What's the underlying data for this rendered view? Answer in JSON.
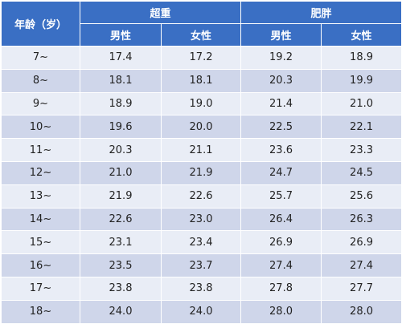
{
  "table": {
    "age_header": "年龄（岁）",
    "groups": [
      "超重",
      "肥胖"
    ],
    "sub_headers": [
      "男性",
      "女性",
      "男性",
      "女性"
    ],
    "rows": [
      {
        "age": "7~",
        "values": [
          "17.4",
          "17.2",
          "19.2",
          "18.9"
        ]
      },
      {
        "age": "8~",
        "values": [
          "18.1",
          "18.1",
          "20.3",
          "19.9"
        ]
      },
      {
        "age": "9~",
        "values": [
          "18.9",
          "19.0",
          "21.4",
          "21.0"
        ]
      },
      {
        "age": "10~",
        "values": [
          "19.6",
          "20.0",
          "22.5",
          "22.1"
        ]
      },
      {
        "age": "11~",
        "values": [
          "20.3",
          "21.1",
          "23.6",
          "23.3"
        ]
      },
      {
        "age": "12~",
        "values": [
          "21.0",
          "21.9",
          "24.7",
          "24.5"
        ]
      },
      {
        "age": "13~",
        "values": [
          "21.9",
          "22.6",
          "25.7",
          "25.6"
        ]
      },
      {
        "age": "14~",
        "values": [
          "22.6",
          "23.0",
          "26.4",
          "26.3"
        ]
      },
      {
        "age": "15~",
        "values": [
          "23.1",
          "23.4",
          "26.9",
          "26.9"
        ]
      },
      {
        "age": "16~",
        "values": [
          "23.5",
          "23.7",
          "27.4",
          "27.4"
        ]
      },
      {
        "age": "17~",
        "values": [
          "23.8",
          "23.8",
          "27.8",
          "27.7"
        ]
      },
      {
        "age": "18~",
        "values": [
          "24.0",
          "24.0",
          "28.0",
          "28.0"
        ]
      }
    ]
  },
  "colors": {
    "header": "#3a6fc4",
    "row_light": "#e9edf6",
    "row_dark": "#cfd6ea"
  }
}
